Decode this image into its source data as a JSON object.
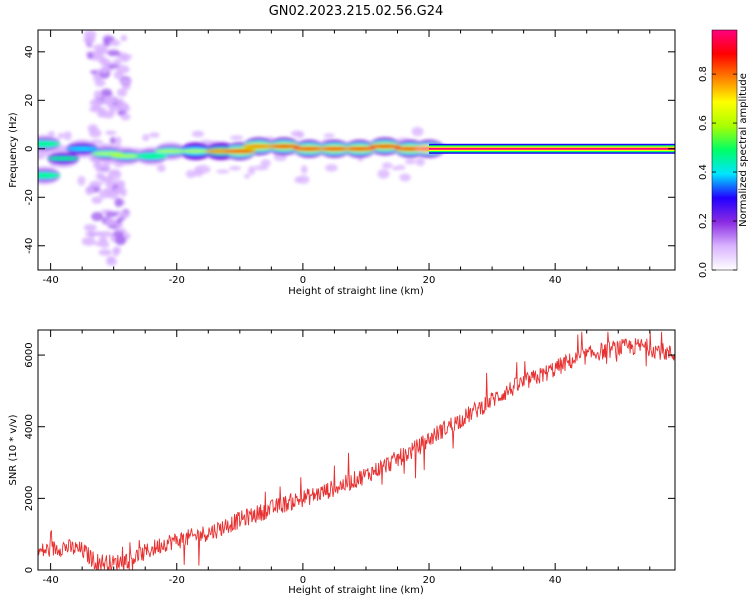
{
  "title": "GN02.2023.215.02.56.G24",
  "colorbar": {
    "label": "Normalized spectral amplitude",
    "ticks": [
      "0.0",
      "0.2",
      "0.4",
      "0.6",
      "0.8"
    ],
    "colors": [
      "#ffffff",
      "#d9b3ff",
      "#8a2be2",
      "#2200ff",
      "#00e5ff",
      "#00ff66",
      "#aaff00",
      "#ffff00",
      "#ff8000",
      "#ff0000",
      "#ff007f"
    ]
  },
  "chart_data": [
    {
      "type": "heatmap",
      "xlabel": "Height of straight line (km)",
      "ylabel": "Frequency (Hz)",
      "xlim": [
        -42,
        59
      ],
      "ylim": [
        -50,
        49
      ],
      "xticks": [
        -40,
        -20,
        0,
        20,
        40
      ],
      "yticks": [
        -40,
        -20,
        0,
        20,
        40
      ],
      "ridge": [
        {
          "x": -41,
          "y": 2,
          "a": 0.5
        },
        {
          "x": -41,
          "y": -11,
          "a": 0.5
        },
        {
          "x": -38,
          "y": -4,
          "a": 0.45
        },
        {
          "x": -35,
          "y": 0,
          "a": 0.4
        },
        {
          "x": -31,
          "y": -2,
          "a": 0.55
        },
        {
          "x": -28,
          "y": -3,
          "a": 0.55
        },
        {
          "x": -24,
          "y": -3,
          "a": 0.5
        },
        {
          "x": -21,
          "y": -1,
          "a": 0.55
        },
        {
          "x": -17,
          "y": -1,
          "a": 0.6
        },
        {
          "x": -13,
          "y": -1,
          "a": 0.75
        },
        {
          "x": -10,
          "y": -1,
          "a": 0.85
        },
        {
          "x": -7,
          "y": 1,
          "a": 0.8
        },
        {
          "x": -3,
          "y": 1,
          "a": 0.85
        },
        {
          "x": 1,
          "y": 0,
          "a": 0.9
        },
        {
          "x": 5,
          "y": 0,
          "a": 0.9
        },
        {
          "x": 9,
          "y": 0,
          "a": 0.9
        },
        {
          "x": 13,
          "y": 1,
          "a": 0.88
        },
        {
          "x": 17,
          "y": 0,
          "a": 0.9
        },
        {
          "x": 20,
          "y": 0,
          "a": 0.95
        }
      ],
      "band": {
        "x_start": 20,
        "x_end": 59,
        "y": 0,
        "a": 0.97
      }
    },
    {
      "type": "line",
      "xlabel": "Height of straight line (km)",
      "ylabel": "SNR (10 * v/v)",
      "xlim": [
        -42,
        59
      ],
      "ylim": [
        0,
        6700
      ],
      "xticks": [
        -40,
        -20,
        0,
        20,
        40
      ],
      "yticks": [
        0,
        2000,
        4000,
        6000
      ],
      "color": "#e83030",
      "trend": [
        {
          "x": -42,
          "y": 500
        },
        {
          "x": -38,
          "y": 650
        },
        {
          "x": -35,
          "y": 550
        },
        {
          "x": -33,
          "y": 250
        },
        {
          "x": -30,
          "y": 180
        },
        {
          "x": -26,
          "y": 400
        },
        {
          "x": -22,
          "y": 750
        },
        {
          "x": -18,
          "y": 900
        },
        {
          "x": -14,
          "y": 1100
        },
        {
          "x": -10,
          "y": 1400
        },
        {
          "x": -6,
          "y": 1650
        },
        {
          "x": -2,
          "y": 1900
        },
        {
          "x": 2,
          "y": 2100
        },
        {
          "x": 6,
          "y": 2350
        },
        {
          "x": 10,
          "y": 2650
        },
        {
          "x": 14,
          "y": 3000
        },
        {
          "x": 18,
          "y": 3400
        },
        {
          "x": 22,
          "y": 3900
        },
        {
          "x": 26,
          "y": 4300
        },
        {
          "x": 30,
          "y": 4750
        },
        {
          "x": 34,
          "y": 5150
        },
        {
          "x": 38,
          "y": 5450
        },
        {
          "x": 42,
          "y": 5800
        },
        {
          "x": 46,
          "y": 6050
        },
        {
          "x": 50,
          "y": 6200
        },
        {
          "x": 54,
          "y": 6250
        },
        {
          "x": 59,
          "y": 6000
        }
      ],
      "noise_amplitude": 380,
      "samples": 950
    }
  ]
}
